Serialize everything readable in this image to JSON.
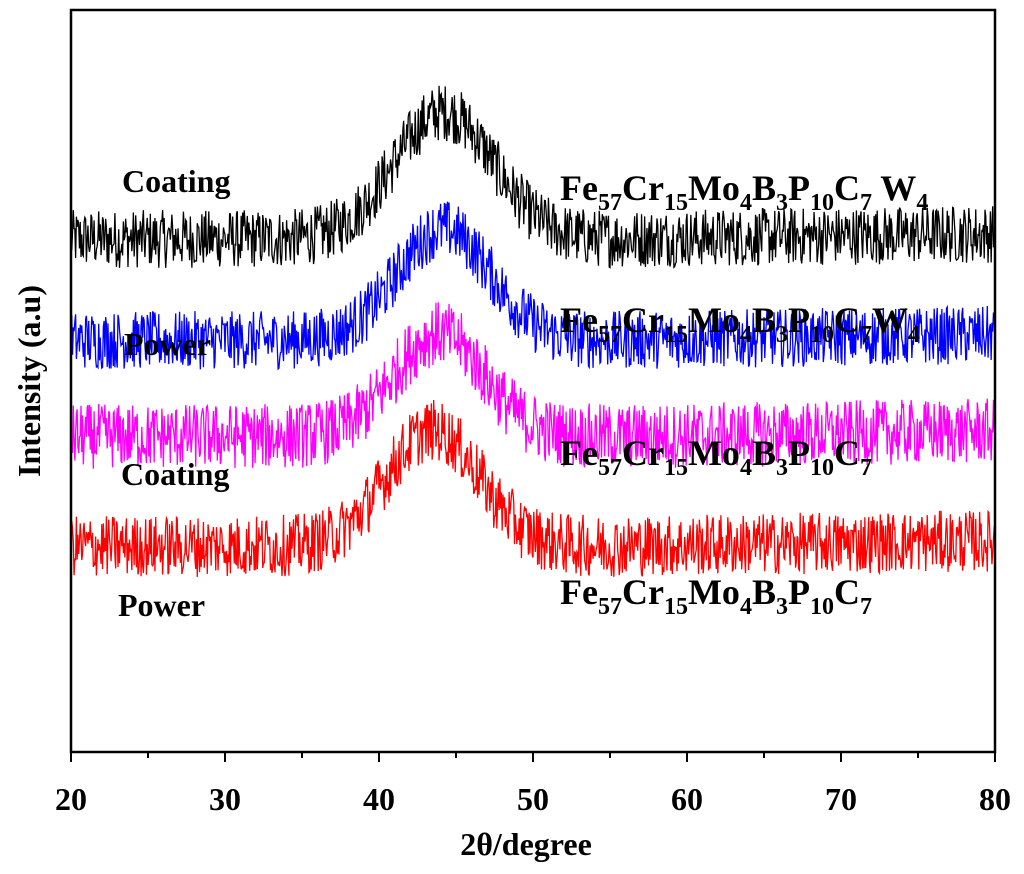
{
  "chart_data": {
    "type": "line",
    "xlabel": "2θ/degree",
    "ylabel": "Intensity (a.u)",
    "xlim": [
      20,
      80
    ],
    "x_ticks": [
      "20",
      "30",
      "40",
      "50",
      "60",
      "70",
      "80"
    ],
    "grid": false,
    "legend": "none",
    "series": [
      {
        "sample": "Coating",
        "composition": [
          "Fe",
          "57",
          "Cr",
          "15",
          "Mo",
          "4",
          "B",
          "3",
          "P",
          "10",
          "C",
          "7",
          " W",
          "4"
        ],
        "color": "#000000",
        "baseline": 268,
        "amplitude": 148,
        "noise": 34,
        "peak_center": 44.2,
        "peak_width": 3.2,
        "points": [
          [
            20,
            268
          ],
          [
            30,
            268
          ],
          [
            38,
            285
          ],
          [
            41,
            355
          ],
          [
            44.2,
            416
          ],
          [
            47,
            360
          ],
          [
            50,
            290
          ],
          [
            60,
            272
          ],
          [
            70,
            270
          ],
          [
            80,
            268
          ]
        ]
      },
      {
        "sample": "Power",
        "composition": [
          "Fe",
          "57",
          "Cr",
          "15",
          "Mo",
          "4",
          "B",
          "3",
          "P",
          "10",
          "C",
          "7",
          "W",
          "4"
        ],
        "color": "#0000ff",
        "baseline": 150,
        "amplitude": 130,
        "noise": 34,
        "peak_center": 44.2,
        "peak_width": 3.0,
        "points": [
          [
            20,
            150
          ],
          [
            30,
            150
          ],
          [
            38,
            165
          ],
          [
            41,
            225
          ],
          [
            44.2,
            280
          ],
          [
            47,
            225
          ],
          [
            50,
            172
          ],
          [
            60,
            155
          ],
          [
            70,
            160
          ],
          [
            80,
            165
          ]
        ]
      },
      {
        "sample": "Coating",
        "composition": [
          "Fe",
          "57",
          "Cr",
          "15",
          "Mo",
          "4",
          "B",
          "3",
          "P",
          "10",
          "C",
          "7"
        ],
        "color": "#ff00ff",
        "baseline": 38,
        "amplitude": 120,
        "noise": 38,
        "peak_center": 43.9,
        "peak_width": 2.9,
        "points": [
          [
            20,
            38
          ],
          [
            30,
            38
          ],
          [
            38,
            55
          ],
          [
            41,
            110
          ],
          [
            43.9,
            158
          ],
          [
            47,
            110
          ],
          [
            50,
            55
          ],
          [
            60,
            40
          ],
          [
            70,
            40
          ],
          [
            80,
            42
          ]
        ]
      },
      {
        "sample": "Power",
        "composition": [
          "Fe",
          "57",
          "Cr",
          "15",
          "Mo",
          "4",
          "B",
          "3",
          "P",
          "10",
          "C",
          "7"
        ],
        "color": "#ff0000",
        "baseline": -90,
        "amplitude": 135,
        "noise": 36,
        "peak_center": 43.5,
        "peak_width": 3.0,
        "points": [
          [
            20,
            -90
          ],
          [
            30,
            -90
          ],
          [
            38,
            -70
          ],
          [
            41,
            0
          ],
          [
            43.5,
            45
          ],
          [
            47,
            0
          ],
          [
            50,
            -65
          ],
          [
            60,
            -85
          ],
          [
            70,
            -85
          ],
          [
            80,
            -82
          ]
        ]
      }
    ]
  }
}
